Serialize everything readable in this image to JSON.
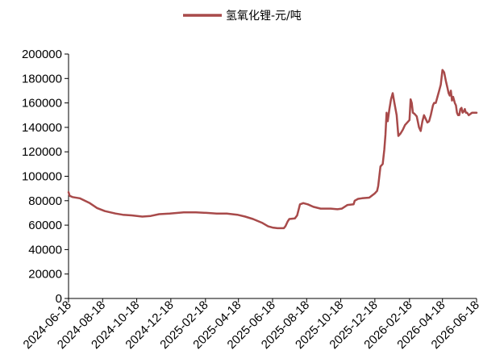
{
  "chart_data": {
    "type": "line",
    "title": "",
    "xlabel": "",
    "ylabel": "",
    "legend_position": "top",
    "grid": false,
    "ylim": [
      0,
      200000
    ],
    "xlim": [
      "2024-06-18",
      "2026-06-18"
    ],
    "y_ticks": [
      "0",
      "20000",
      "40000",
      "60000",
      "80000",
      "100000",
      "120000",
      "140000",
      "160000",
      "180000",
      "200000"
    ],
    "x_ticks": [
      "2024-06-18",
      "2024-08-18",
      "2024-10-18",
      "2024-12-18",
      "2025-02-18",
      "2025-04-18",
      "2025-06-18",
      "2025-08-18",
      "2025-10-18",
      "2025-12-18",
      "2026-02-18",
      "2026-04-18",
      "2026-06-18"
    ],
    "series": [
      {
        "name": "氢氧化锂-元/吨",
        "color": "#a84a4a",
        "x": [
          "2024-06-18",
          "2024-06-20",
          "2024-06-25",
          "2024-07-08",
          "2024-07-26",
          "2024-08-08",
          "2024-08-22",
          "2024-09-10",
          "2024-09-23",
          "2024-10-09",
          "2024-10-28",
          "2024-11-12",
          "2024-11-27",
          "2024-12-16",
          "2025-01-10",
          "2025-02-01",
          "2025-02-20",
          "2025-03-10",
          "2025-03-28",
          "2025-04-16",
          "2025-04-30",
          "2025-05-14",
          "2025-05-30",
          "2025-06-10",
          "2025-06-18",
          "2025-06-27",
          "2025-07-08",
          "2025-07-11",
          "2025-07-15",
          "2025-07-18",
          "2025-07-28",
          "2025-08-01",
          "2025-08-06",
          "2025-08-12",
          "2025-08-20",
          "2025-08-30",
          "2025-09-12",
          "2025-09-30",
          "2025-10-12",
          "2025-10-20",
          "2025-10-30",
          "2025-11-10",
          "2025-11-12",
          "2025-11-18",
          "2025-11-25",
          "2025-12-08",
          "2025-12-18",
          "2025-12-22",
          "2025-12-24",
          "2025-12-28",
          "2026-01-01",
          "2026-01-04",
          "2026-01-06",
          "2026-01-08",
          "2026-01-10",
          "2026-01-13",
          "2026-01-16",
          "2026-01-19",
          "2026-01-22",
          "2026-01-26",
          "2026-01-29",
          "2026-02-02",
          "2026-02-06",
          "2026-02-10",
          "2026-02-18",
          "2026-02-20",
          "2026-02-22",
          "2026-02-24",
          "2026-02-27",
          "2026-03-03",
          "2026-03-07",
          "2026-03-10",
          "2026-03-13",
          "2026-03-16",
          "2026-03-19",
          "2026-03-22",
          "2026-03-25",
          "2026-03-28",
          "2026-04-01",
          "2026-04-03",
          "2026-04-06",
          "2026-04-09",
          "2026-04-12",
          "2026-04-15",
          "2026-04-18",
          "2026-04-21",
          "2026-04-24",
          "2026-04-27",
          "2026-04-29",
          "2026-05-01",
          "2026-05-03",
          "2026-05-05",
          "2026-05-07",
          "2026-05-10",
          "2026-05-12",
          "2026-05-14",
          "2026-05-16",
          "2026-05-18",
          "2026-05-20",
          "2026-05-22",
          "2026-05-24",
          "2026-05-26",
          "2026-05-28",
          "2026-05-30",
          "2026-06-01",
          "2026-06-04",
          "2026-06-07",
          "2026-06-10",
          "2026-06-13",
          "2026-06-16",
          "2026-06-18"
        ],
        "values": [
          87000,
          84000,
          83000,
          82000,
          78000,
          74000,
          71500,
          69500,
          68500,
          68000,
          67000,
          67500,
          69000,
          69500,
          70500,
          70500,
          70000,
          69500,
          69500,
          68500,
          67000,
          65000,
          62000,
          59000,
          58000,
          57500,
          57500,
          59000,
          63000,
          65000,
          65500,
          68000,
          77000,
          78000,
          77000,
          75000,
          73500,
          73500,
          73000,
          73500,
          76500,
          77000,
          80000,
          81500,
          82000,
          82500,
          86000,
          88000,
          92000,
          108000,
          110000,
          122000,
          134000,
          152000,
          145000,
          155000,
          163000,
          168000,
          160000,
          150000,
          133000,
          135000,
          138000,
          142000,
          146000,
          163000,
          160000,
          152000,
          151000,
          149000,
          140000,
          137000,
          145000,
          150000,
          147000,
          144000,
          145000,
          150000,
          158000,
          160000,
          160000,
          165000,
          170000,
          175000,
          187000,
          185000,
          178000,
          172000,
          168000,
          166000,
          170000,
          162000,
          165000,
          160000,
          158000,
          152000,
          150000,
          150000,
          155000,
          156000,
          152000,
          153000,
          155000,
          152000,
          152000,
          150000,
          151000,
          152000,
          152000,
          152000,
          152000
        ]
      }
    ]
  }
}
